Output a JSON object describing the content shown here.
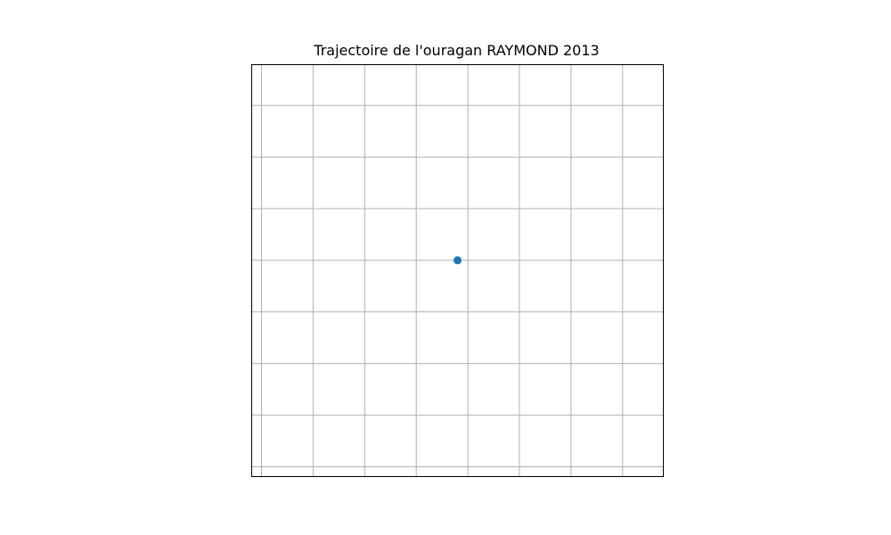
{
  "chart_data": {
    "type": "scatter",
    "title": "Trajectoire de l'ouragan RAYMOND 2013",
    "xlabel": "",
    "ylabel": "",
    "grid": true,
    "tick_labels_shown": false,
    "xlim": [
      0,
      8
    ],
    "ylim": [
      0,
      8
    ],
    "x_gridlines": [
      0,
      1,
      2,
      3,
      4,
      5,
      6,
      7
    ],
    "y_gridlines": [
      0,
      1,
      2,
      3,
      4,
      5,
      6,
      7
    ],
    "series": [
      {
        "color": "#1f77b4",
        "points": [
          {
            "x": 3.8,
            "y": 4.0
          }
        ]
      }
    ]
  },
  "colors": {
    "point": "#1f77b4",
    "grid": "#b0b0b0",
    "frame": "#000000"
  }
}
